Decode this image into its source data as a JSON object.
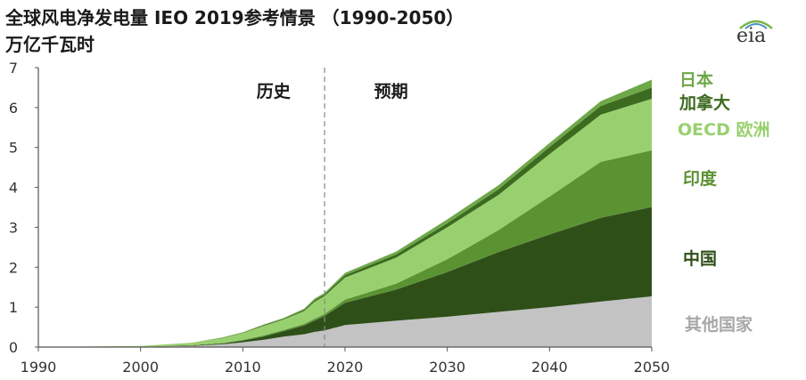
{
  "header": {
    "title": "全球风电净发电量 IEO 2019参考情景 （1990-2050）",
    "subtitle": "万亿千瓦时"
  },
  "logo": {
    "text": "eia"
  },
  "colors": {
    "其他国家": "#c3c3c3",
    "中国": "#2f4f19",
    "印度": "#5b9333",
    "OECD 欧洲": "#99d06f",
    "加拿大": "#3c6a1f",
    "日本": "#6ea849",
    "axis": "#555555",
    "divider": "#888888"
  },
  "chart_data": {
    "type": "area",
    "stacked": true,
    "xlim": [
      1990,
      2050
    ],
    "ylim": [
      0,
      7
    ],
    "x_ticks": [
      1990,
      2000,
      2010,
      2020,
      2030,
      2040,
      2050
    ],
    "y_ticks": [
      0,
      1,
      2,
      3,
      4,
      5,
      6,
      7
    ],
    "divider_year": 2018,
    "annotations": [
      {
        "text": "历史",
        "x": 2013
      },
      {
        "text": "预期",
        "x": 2024.5
      }
    ],
    "x": [
      1990,
      2000,
      2005,
      2008,
      2010,
      2012,
      2014,
      2016,
      2017,
      2018,
      2020,
      2025,
      2030,
      2035,
      2040,
      2045,
      2050
    ],
    "series": [
      {
        "name": "其他国家",
        "values": [
          0,
          0.01,
          0.03,
          0.07,
          0.12,
          0.18,
          0.26,
          0.32,
          0.38,
          0.42,
          0.55,
          0.66,
          0.76,
          0.88,
          1.0,
          1.14,
          1.27
        ]
      },
      {
        "name": "中国",
        "values": [
          0,
          0,
          0.01,
          0.02,
          0.04,
          0.08,
          0.14,
          0.22,
          0.28,
          0.36,
          0.56,
          0.78,
          1.12,
          1.5,
          1.82,
          2.1,
          2.24
        ]
      },
      {
        "name": "印度",
        "values": [
          0,
          0,
          0.01,
          0.01,
          0.02,
          0.03,
          0.03,
          0.04,
          0.05,
          0.05,
          0.08,
          0.15,
          0.32,
          0.55,
          0.95,
          1.4,
          1.42
        ]
      },
      {
        "name": "OECD 欧洲",
        "values": [
          0,
          0.02,
          0.06,
          0.12,
          0.17,
          0.24,
          0.26,
          0.32,
          0.42,
          0.45,
          0.55,
          0.65,
          0.8,
          0.88,
          1.06,
          1.18,
          1.29
        ]
      },
      {
        "name": "加拿大",
        "values": [
          0,
          0,
          0,
          0.01,
          0.01,
          0.02,
          0.02,
          0.03,
          0.04,
          0.04,
          0.06,
          0.08,
          0.1,
          0.14,
          0.18,
          0.22,
          0.28
        ]
      },
      {
        "name": "日本",
        "values": [
          0,
          0,
          0,
          0.01,
          0.01,
          0.01,
          0.02,
          0.03,
          0.04,
          0.04,
          0.06,
          0.07,
          0.1,
          0.1,
          0.1,
          0.12,
          0.2
        ]
      }
    ],
    "legend": [
      {
        "text": "日本",
        "series": "日本"
      },
      {
        "text": "加拿大",
        "series": "加拿大"
      },
      {
        "text": "OECD 欧洲",
        "series": "OECD 欧洲"
      },
      {
        "text": "印度",
        "series": "印度"
      },
      {
        "text": "中国",
        "series": "中国"
      },
      {
        "text": "其他国家",
        "series": "其他国家"
      }
    ],
    "legend_position": "right",
    "grid": false
  }
}
